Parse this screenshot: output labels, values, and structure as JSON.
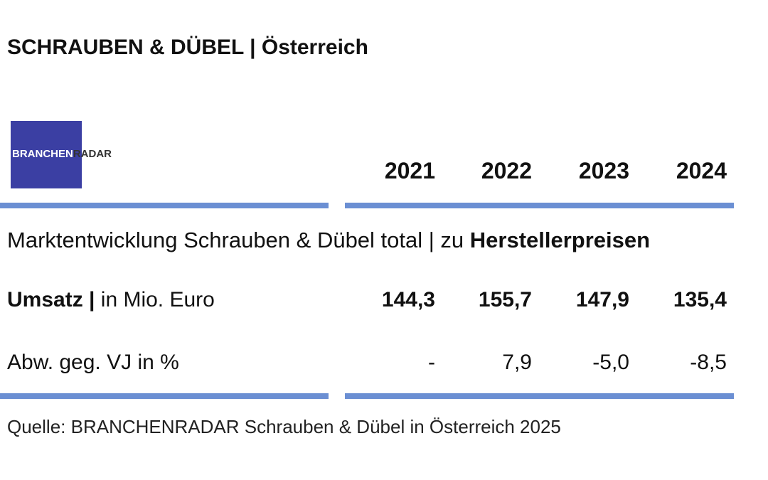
{
  "header": {
    "title": "SCHRAUBEN & DÜBEL | Österreich"
  },
  "logo": {
    "part1": "BRANCHEN",
    "part2": "RADAR"
  },
  "table": {
    "columns": [
      "2021",
      "2022",
      "2023",
      "2024"
    ],
    "section": {
      "text": "Marktentwicklung Schrauben & Dübel total | zu ",
      "emphasis": "Herstellerpreisen"
    },
    "rows": [
      {
        "label": "Umsatz |",
        "unit": " in Mio. Euro",
        "values": [
          "144,3",
          "155,7",
          "147,9",
          "135,4"
        ]
      },
      {
        "label": "Abw. geg. VJ in %",
        "values": [
          "-",
          "7,9",
          "-5,0",
          "-8,5"
        ]
      }
    ]
  },
  "footer": {
    "source": "Quelle: BRANCHENRADAR Schrauben & Dübel in Österreich 2025"
  }
}
